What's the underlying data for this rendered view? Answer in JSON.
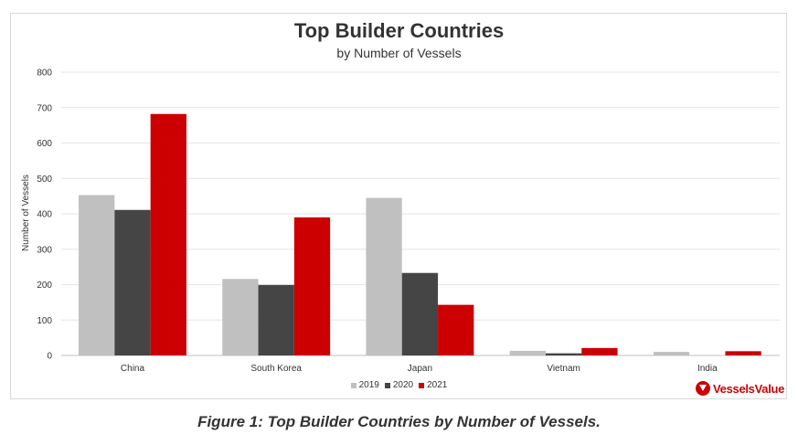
{
  "chart_data": {
    "type": "bar",
    "title": "Top Builder Countries",
    "subtitle": "by Number of Vessels",
    "xlabel": "",
    "ylabel": "Number of Vessels",
    "ylim": [
      0,
      800
    ],
    "yticks": [
      0,
      100,
      200,
      300,
      400,
      500,
      600,
      700,
      800
    ],
    "grid": true,
    "legend_position": "bottom",
    "categories": [
      "China",
      "South Korea",
      "Japan",
      "Vietnam",
      "India"
    ],
    "series": [
      {
        "name": "2019",
        "color": "#c0c0c0",
        "values": [
          453,
          216,
          445,
          13,
          10
        ]
      },
      {
        "name": "2020",
        "color": "#454545",
        "values": [
          411,
          199,
          233,
          6,
          0
        ]
      },
      {
        "name": "2021",
        "color": "#cc0000",
        "values": [
          682,
          390,
          143,
          21,
          12
        ]
      }
    ]
  },
  "brand": {
    "name": "VesselsValue",
    "icon": "vesselsvalue-logo-icon",
    "color": "#cc0000"
  },
  "caption": "Figure 1: Top Builder Countries by Number of Vessels."
}
